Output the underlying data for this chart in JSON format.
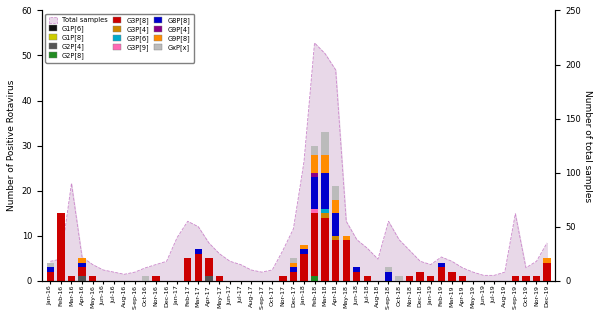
{
  "months": [
    "Jan-16",
    "Feb-16",
    "Mar-16",
    "Apr-16",
    "May-16",
    "Jun-16",
    "Jul-16",
    "Aug-16",
    "S-ep-16",
    "Oct-16",
    "Nor-16",
    "Dec-16",
    "Jan-17",
    "Feb-17",
    "Mar-17",
    "Apr-17",
    "May-17",
    "Jun-17",
    "Jul-17",
    "Aug-17",
    "S-ep-17",
    "Oct-17",
    "Nor-17",
    "Dec-17",
    "Jan-18",
    "Feb-18",
    "Mar-18",
    "Apr-18",
    "May-18",
    "Jun-18",
    "Jul-18",
    "Aug-18",
    "S-ep-18",
    "Oct-18",
    "Nor-18",
    "Dec-18",
    "Jan-19",
    "Feb-19",
    "Mar-19",
    "Apr-19",
    "May-19",
    "Jun-19",
    "Jul-19",
    "Aug-19",
    "S-ep-19",
    "Oct-19",
    "Nor-19",
    "Dec-19"
  ],
  "total_samples": [
    18,
    20,
    90,
    22,
    15,
    10,
    8,
    6,
    8,
    12,
    15,
    18,
    40,
    55,
    50,
    35,
    25,
    18,
    15,
    10,
    8,
    10,
    28,
    48,
    110,
    220,
    210,
    195,
    55,
    38,
    30,
    20,
    55,
    38,
    28,
    18,
    15,
    22,
    18,
    12,
    8,
    5,
    5,
    8,
    62,
    12,
    18,
    35
  ],
  "G1P6": [
    0,
    0,
    0,
    0,
    0,
    0,
    0,
    0,
    0,
    0,
    0,
    0,
    0,
    0,
    0,
    0,
    0,
    0,
    0,
    0,
    0,
    0,
    0,
    0,
    0,
    0,
    0,
    0,
    0,
    0,
    0,
    0,
    0,
    0,
    0,
    0,
    0,
    0,
    0,
    0,
    0,
    0,
    0,
    0,
    0,
    0,
    0,
    0
  ],
  "G1P8": [
    0,
    0,
    0,
    0,
    0,
    0,
    0,
    0,
    0,
    0,
    0,
    0,
    0,
    0,
    0,
    0,
    0,
    0,
    0,
    0,
    0,
    0,
    0,
    0,
    0,
    0,
    0,
    0,
    0,
    0,
    0,
    0,
    0,
    0,
    0,
    0,
    0,
    0,
    0,
    0,
    0,
    0,
    0,
    0,
    0,
    0,
    0,
    0
  ],
  "G2P4": [
    0,
    0,
    0,
    1,
    0,
    0,
    0,
    0,
    0,
    0,
    0,
    0,
    0,
    0,
    0,
    1,
    0,
    0,
    0,
    0,
    0,
    0,
    0,
    0,
    0,
    0,
    0,
    0,
    0,
    0,
    0,
    0,
    0,
    0,
    0,
    0,
    0,
    0,
    0,
    0,
    0,
    0,
    0,
    0,
    0,
    0,
    0,
    0
  ],
  "G2P8": [
    0,
    0,
    0,
    0,
    0,
    0,
    0,
    0,
    0,
    0,
    0,
    0,
    0,
    0,
    0,
    0,
    0,
    0,
    0,
    0,
    0,
    0,
    0,
    0,
    0,
    1,
    0,
    0,
    0,
    0,
    0,
    0,
    0,
    0,
    0,
    0,
    0,
    0,
    0,
    0,
    0,
    0,
    0,
    0,
    0,
    0,
    0,
    0
  ],
  "G3P8": [
    2,
    15,
    1,
    2,
    1,
    0,
    0,
    0,
    0,
    0,
    1,
    0,
    0,
    5,
    6,
    4,
    1,
    0,
    0,
    0,
    0,
    0,
    1,
    2,
    6,
    14,
    14,
    9,
    9,
    2,
    1,
    0,
    0,
    0,
    1,
    2,
    1,
    3,
    2,
    1,
    0,
    0,
    0,
    0,
    1,
    1,
    1,
    4
  ],
  "G3P4": [
    0,
    0,
    0,
    0,
    0,
    0,
    0,
    0,
    0,
    0,
    0,
    0,
    0,
    0,
    0,
    0,
    0,
    0,
    0,
    0,
    0,
    0,
    0,
    0,
    0,
    0,
    1,
    1,
    0,
    0,
    0,
    0,
    0,
    0,
    0,
    0,
    0,
    0,
    0,
    0,
    0,
    0,
    0,
    0,
    0,
    0,
    0,
    0
  ],
  "G3P6": [
    0,
    0,
    0,
    0,
    0,
    0,
    0,
    0,
    0,
    0,
    0,
    0,
    0,
    0,
    0,
    0,
    0,
    0,
    0,
    0,
    0,
    0,
    0,
    0,
    0,
    0,
    1,
    0,
    0,
    0,
    0,
    0,
    0,
    0,
    0,
    0,
    0,
    0,
    0,
    0,
    0,
    0,
    0,
    0,
    0,
    0,
    0,
    0
  ],
  "G3P9": [
    0,
    0,
    0,
    0,
    0,
    0,
    0,
    0,
    0,
    0,
    0,
    0,
    0,
    0,
    0,
    0,
    0,
    0,
    0,
    0,
    0,
    0,
    0,
    0,
    0,
    1,
    0,
    0,
    0,
    0,
    0,
    0,
    0,
    0,
    0,
    0,
    0,
    0,
    0,
    0,
    0,
    0,
    0,
    0,
    0,
    0,
    0,
    0
  ],
  "G8P8": [
    1,
    0,
    0,
    1,
    0,
    0,
    0,
    0,
    0,
    0,
    0,
    0,
    0,
    0,
    1,
    0,
    0,
    0,
    0,
    0,
    0,
    0,
    0,
    1,
    1,
    7,
    8,
    5,
    0,
    1,
    0,
    0,
    2,
    0,
    0,
    0,
    0,
    1,
    0,
    0,
    0,
    0,
    0,
    0,
    0,
    0,
    0,
    0
  ],
  "G9P4": [
    0,
    0,
    0,
    0,
    0,
    0,
    0,
    0,
    0,
    0,
    0,
    0,
    0,
    0,
    0,
    0,
    0,
    0,
    0,
    0,
    0,
    0,
    0,
    0,
    0,
    1,
    0,
    0,
    0,
    0,
    0,
    0,
    0,
    0,
    0,
    0,
    0,
    0,
    0,
    0,
    0,
    0,
    0,
    0,
    0,
    0,
    0,
    0
  ],
  "G9P8": [
    0,
    0,
    0,
    1,
    0,
    0,
    0,
    0,
    0,
    0,
    0,
    0,
    0,
    0,
    0,
    0,
    0,
    0,
    0,
    0,
    0,
    0,
    0,
    1,
    1,
    4,
    4,
    3,
    1,
    0,
    0,
    0,
    0,
    0,
    0,
    0,
    0,
    0,
    0,
    0,
    0,
    0,
    0,
    0,
    0,
    0,
    0,
    1
  ],
  "GxPx": [
    1,
    0,
    0,
    0,
    0,
    0,
    0,
    0,
    0,
    1,
    0,
    0,
    0,
    0,
    0,
    0,
    0,
    0,
    0,
    0,
    0,
    0,
    0,
    1,
    0,
    2,
    5,
    3,
    0,
    0,
    0,
    0,
    1,
    1,
    0,
    0,
    0,
    0,
    0,
    0,
    0,
    0,
    0,
    0,
    0,
    0,
    0,
    0
  ],
  "colors": {
    "G1P6": "#111111",
    "G1P8": "#cccc00",
    "G2P4": "#555555",
    "G2P8": "#228B22",
    "G3P8": "#cc0000",
    "G3P4": "#cc8800",
    "G3P6": "#00aacc",
    "G3P9": "#ff69b4",
    "G8P8": "#0000cc",
    "G9P4": "#880088",
    "G9P8": "#ff8c00",
    "GxPx": "#bbbbbb"
  },
  "ylim_left": [
    0,
    60
  ],
  "ylim_right": [
    0,
    250
  ],
  "ylabel_left": "Number of Positive Rotavirus",
  "ylabel_right": "Number of total samples",
  "total_samples_scale": 4.1667
}
